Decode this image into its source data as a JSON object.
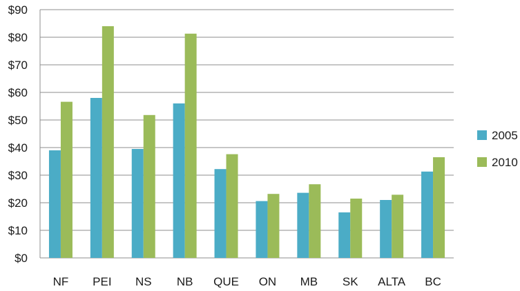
{
  "chart_data": {
    "type": "bar",
    "categories": [
      "NF",
      "PEI",
      "NS",
      "NB",
      "QUE",
      "ON",
      "MB",
      "SK",
      "ALTA",
      "BC"
    ],
    "series": [
      {
        "name": "2005",
        "color": "#4bacc6",
        "values": [
          39,
          58,
          39.5,
          56,
          32.2,
          20.6,
          23.6,
          16.5,
          21,
          31.3
        ]
      },
      {
        "name": "2010",
        "color": "#9bbb59",
        "values": [
          56.6,
          84,
          51.8,
          81.3,
          37.6,
          23.2,
          26.7,
          21.5,
          22.9,
          36.5
        ]
      }
    ],
    "yticks": [
      "$0",
      "$10",
      "$20",
      "$30",
      "$40",
      "$50",
      "$60",
      "$70",
      "$80",
      "$90"
    ],
    "ylim": [
      0,
      90
    ],
    "grid": true,
    "legend_position": "right",
    "gridline_color": "#8c8c8c"
  }
}
